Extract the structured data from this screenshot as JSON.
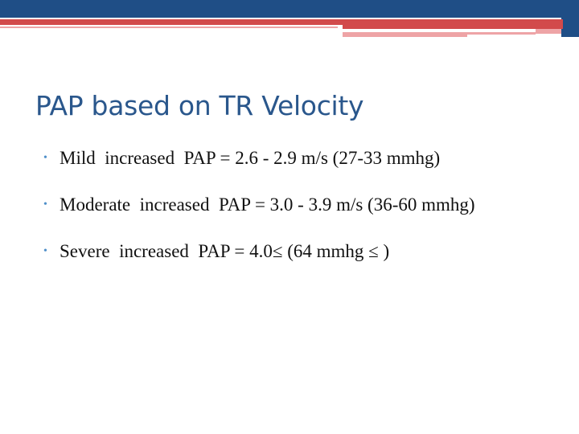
{
  "colors": {
    "accent_navy": "#1f4e86",
    "accent_red": "#d24a4b",
    "accent_pink": "#eea4a6",
    "title": "#2a578c",
    "bullet": "#4f8fc9"
  },
  "slide": {
    "title": "PAP based on TR Velocity",
    "bullet_icon": "bullet-dot-icon",
    "bullet_glyph": "•",
    "bullets": [
      {
        "text": "Mild  increased  PAP = 2.6 - 2.9 m/s (27-33 mmhg)"
      },
      {
        "text": "Moderate  increased  PAP = 3.0 - 3.9 m/s (36-60 mmhg)"
      },
      {
        "text": "Severe  increased  PAP = 4.0≤ (64 mmhg ≤ )"
      }
    ]
  }
}
